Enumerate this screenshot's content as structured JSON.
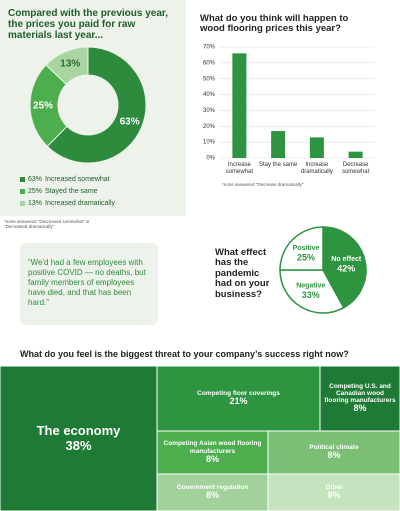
{
  "chart_data": [
    {
      "type": "donut",
      "title": "Compared with the previous year, the prices you paid for raw materials last year...",
      "categories": [
        "Increased somewhat",
        "Stayed the same",
        "Increased dramatically"
      ],
      "values": [
        63,
        25,
        13
      ],
      "value_labels": [
        "63%",
        "25%",
        "13%"
      ],
      "colors": [
        "#2e8b3e",
        "#4cae4c",
        "#a8d5a0"
      ],
      "note": "*none answered \"Decreased somewhat\" or \"Decreased dramatically\""
    },
    {
      "type": "bar",
      "title": "What do you think will happen to wood flooring prices this year?",
      "categories": [
        "Increase somewhat",
        "Stay the same",
        "Increase dramatically",
        "Decrease somewhat"
      ],
      "values": [
        66,
        17,
        13,
        4
      ],
      "color": "#2e9440",
      "ylim": [
        0,
        70
      ],
      "yticks": [
        {
          "value": 0,
          "label": "0%"
        },
        {
          "value": 10,
          "label": "10%"
        },
        {
          "value": 20,
          "label": "20%"
        },
        {
          "value": 30,
          "label": "30%"
        },
        {
          "value": 40,
          "label": "40%"
        },
        {
          "value": 50,
          "label": "50%"
        },
        {
          "value": 60,
          "label": "60%"
        },
        {
          "value": 70,
          "label": "70%"
        }
      ],
      "grid": true,
      "note": "*none answered \"Decrease dramatically\""
    },
    {
      "type": "pie",
      "title": "What effect has the pandemic had on your business?",
      "categories": [
        "No effect",
        "Negative",
        "Positive"
      ],
      "values": [
        42,
        33,
        25
      ],
      "value_labels": [
        "42%",
        "33%",
        "25%"
      ],
      "colors": [
        "#2e9440",
        "#ffffff",
        "#ffffff"
      ]
    },
    {
      "type": "treemap",
      "title": "What do you feel is the biggest threat to your company’s success right now?",
      "categories": [
        "The economy",
        "Competing floor coverings",
        "Competing U.S. and Canadian wood flooring manufacturers",
        "Competing Asian wood flooring manufacturers",
        "Political climate",
        "Government regulation",
        "Other"
      ],
      "values": [
        38,
        21,
        8,
        8,
        8,
        8,
        8
      ],
      "value_labels": [
        "38%",
        "21%",
        "8%",
        "8%",
        "8%",
        "8%",
        "8%"
      ],
      "colors": [
        "#1f7a35",
        "#2e9440",
        "#1f7a35",
        "#4cae4c",
        "#7bbf74",
        "#a3d19b",
        "#c5e3be"
      ]
    }
  ],
  "quote": "“We'd had a few employees with positive COVID — no deaths, but family members of employees have died, and that has been hard.”"
}
